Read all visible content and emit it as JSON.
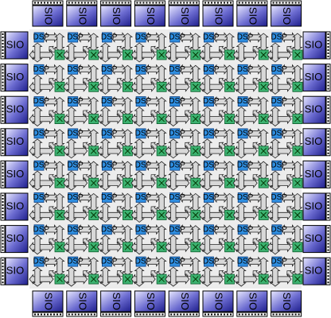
{
  "diagram": {
    "grid_rows": 8,
    "grid_cols": 8,
    "io_label": "SIO",
    "processor_label": "DSP",
    "switch_icon": "crossbar-switch-icon",
    "colors": {
      "io_dark": "#1e1e8c",
      "io_light": "#e8e8ff",
      "dsp": "#2f8ee0",
      "dsp_border": "#0a3d80",
      "switch": "#3cb371",
      "switch_border": "#0a5a2a",
      "arrow_fill": "#d8d8d8",
      "arrow_stroke": "#222222",
      "array_bg": "#ececec"
    }
  }
}
